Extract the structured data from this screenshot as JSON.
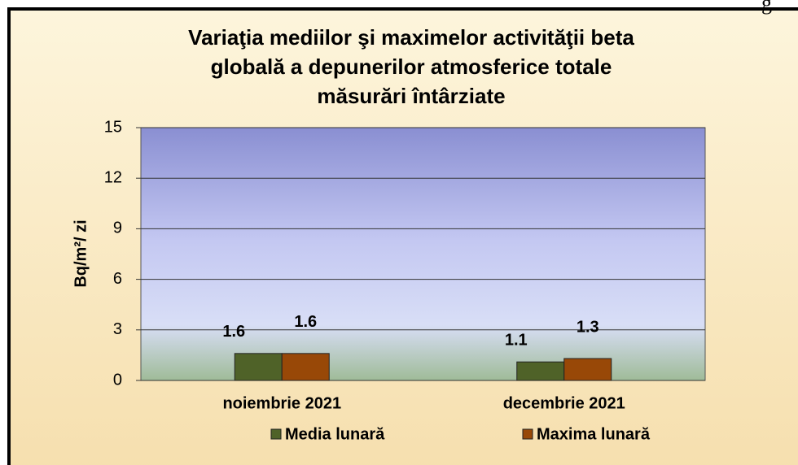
{
  "page_fragment": "g",
  "chart_data": {
    "type": "bar",
    "title": [
      "Variaţia mediilor şi maximelor activităţii beta",
      "globală a depunerilor atmosferice totale",
      "măsurări întârziate"
    ],
    "ylabel": "Bq/m²/ zi",
    "categories": [
      "noiembrie 2021",
      "decembrie 2021"
    ],
    "series": [
      {
        "name": "Media lunară",
        "color": "#4f6228",
        "values": [
          1.6,
          1.1
        ]
      },
      {
        "name": "Maxima lunară",
        "color": "#984807",
        "values": [
          1.6,
          1.3
        ]
      }
    ],
    "ylim": [
      0,
      15
    ],
    "yticks": [
      0,
      3,
      6,
      9,
      12,
      15
    ],
    "grid": true,
    "legend": "bottom"
  }
}
